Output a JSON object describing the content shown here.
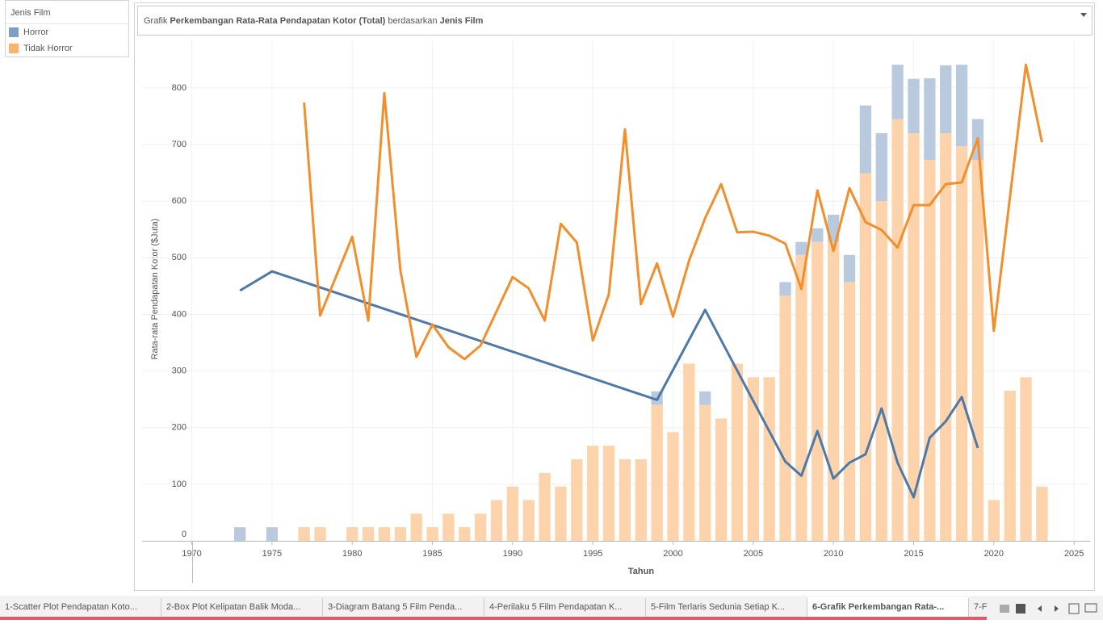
{
  "chart_data": {
    "type": "bar-line",
    "title": [
      "Grafik ",
      "Perkembangan Rata-Rata Pendapatan Kotor (Total)",
      " berdasarkan ",
      "Jenis Film"
    ],
    "title_bold": [
      false,
      true,
      false,
      true
    ],
    "y_label": "Rata-rata Pendapatan Kotor ($Juta)",
    "x_label": "Tahun",
    "legend_title": "Jenis Film",
    "xlim": [
      1966.9,
      2026
    ],
    "xticks": [
      1970,
      1975,
      1980,
      1985,
      1990,
      1995,
      2000,
      2005,
      2010,
      2015,
      2020,
      2025
    ],
    "ylim": [
      0,
      884
    ],
    "yticks": [
      0,
      100,
      200,
      300,
      400,
      500,
      600,
      700,
      800
    ],
    "grid": true,
    "bar_x": [
      1973,
      1975,
      1977,
      1978,
      1980,
      1981,
      1982,
      1983,
      1984,
      1985,
      1986,
      1987,
      1988,
      1989,
      1990,
      1991,
      1992,
      1993,
      1994,
      1995,
      1996,
      1997,
      1998,
      1999,
      2000,
      2001,
      2002,
      2003,
      2004,
      2005,
      2006,
      2007,
      2008,
      2009,
      2010,
      2011,
      2012,
      2013,
      2014,
      2015,
      2016,
      2017,
      2018,
      2019,
      2020,
      2021,
      2022,
      2023
    ],
    "stack_order": [
      1,
      0
    ],
    "groups": [
      {
        "name": "Horror",
        "color": "#7e9fc4",
        "bar_color": "#b9cade",
        "line_color": "#4e79a7",
        "bar_values": [
          24,
          24,
          null,
          null,
          null,
          null,
          null,
          null,
          null,
          null,
          null,
          null,
          null,
          null,
          null,
          null,
          null,
          null,
          null,
          null,
          null,
          null,
          null,
          24,
          null,
          null,
          24,
          null,
          null,
          null,
          null,
          24,
          23,
          24,
          48,
          48,
          120,
          120,
          96,
          96,
          144,
          120,
          144,
          72,
          null,
          null,
          null,
          null
        ],
        "line_x": [
          1973,
          1975,
          1999,
          2002,
          2007,
          2008,
          2009,
          2010,
          2011,
          2012,
          2013,
          2014,
          2015,
          2016,
          2017,
          2018,
          2019
        ],
        "line_values": [
          442,
          476,
          249,
          408,
          140,
          115,
          194,
          110,
          138,
          153,
          234,
          138,
          77,
          182,
          211,
          254,
          164
        ]
      },
      {
        "name": "Tidak Horror",
        "color": "#fdb36a",
        "bar_color": "#fcd3ab",
        "line_color": "#f28e2b",
        "bar_values": [
          null,
          null,
          24,
          24,
          24,
          24,
          24,
          24,
          48,
          24,
          48,
          24,
          48,
          72,
          96,
          72,
          120,
          96,
          144,
          168,
          168,
          144,
          144,
          240,
          192,
          313,
          240,
          216,
          313,
          289,
          289,
          433,
          505,
          528,
          528,
          457,
          649,
          600,
          745,
          720,
          673,
          720,
          697,
          673,
          72,
          265,
          289,
          96
        ],
        "line_x": [
          1977,
          1978,
          1980,
          1981,
          1982,
          1983,
          1984,
          1985,
          1986,
          1987,
          1988,
          1990,
          1991,
          1992,
          1993,
          1994,
          1995,
          1996,
          1997,
          1998,
          1999,
          2000,
          2001,
          2002,
          2003,
          2004,
          2005,
          2006,
          2007,
          2008,
          2009,
          2010,
          2011,
          2012,
          2013,
          2014,
          2015,
          2016,
          2017,
          2018,
          2019,
          2020,
          2021,
          2022,
          2023
        ],
        "line_values": [
          774,
          398,
          537,
          389,
          791,
          478,
          325,
          382,
          342,
          321,
          345,
          466,
          446,
          389,
          560,
          527,
          354,
          436,
          727,
          418,
          490,
          396,
          495,
          570,
          630,
          545,
          546,
          539,
          525,
          445,
          619,
          512,
          623,
          563,
          549,
          518,
          593,
          593,
          630,
          633,
          711,
          371,
          606,
          841,
          704
        ]
      }
    ]
  },
  "tabs": [
    "1-Scatter Plot Pendapatan Koto...",
    "2-Box Plot Kelipatan Balik Moda...",
    "3-Diagram Batang 5 Film Penda...",
    "4-Perilaku 5 Film Pendapatan K...",
    "5-Film Terlaris Sedunia Setiap K...",
    "6-Grafik Perkembangan Rata-...",
    "7-F"
  ],
  "active_tab": 5
}
